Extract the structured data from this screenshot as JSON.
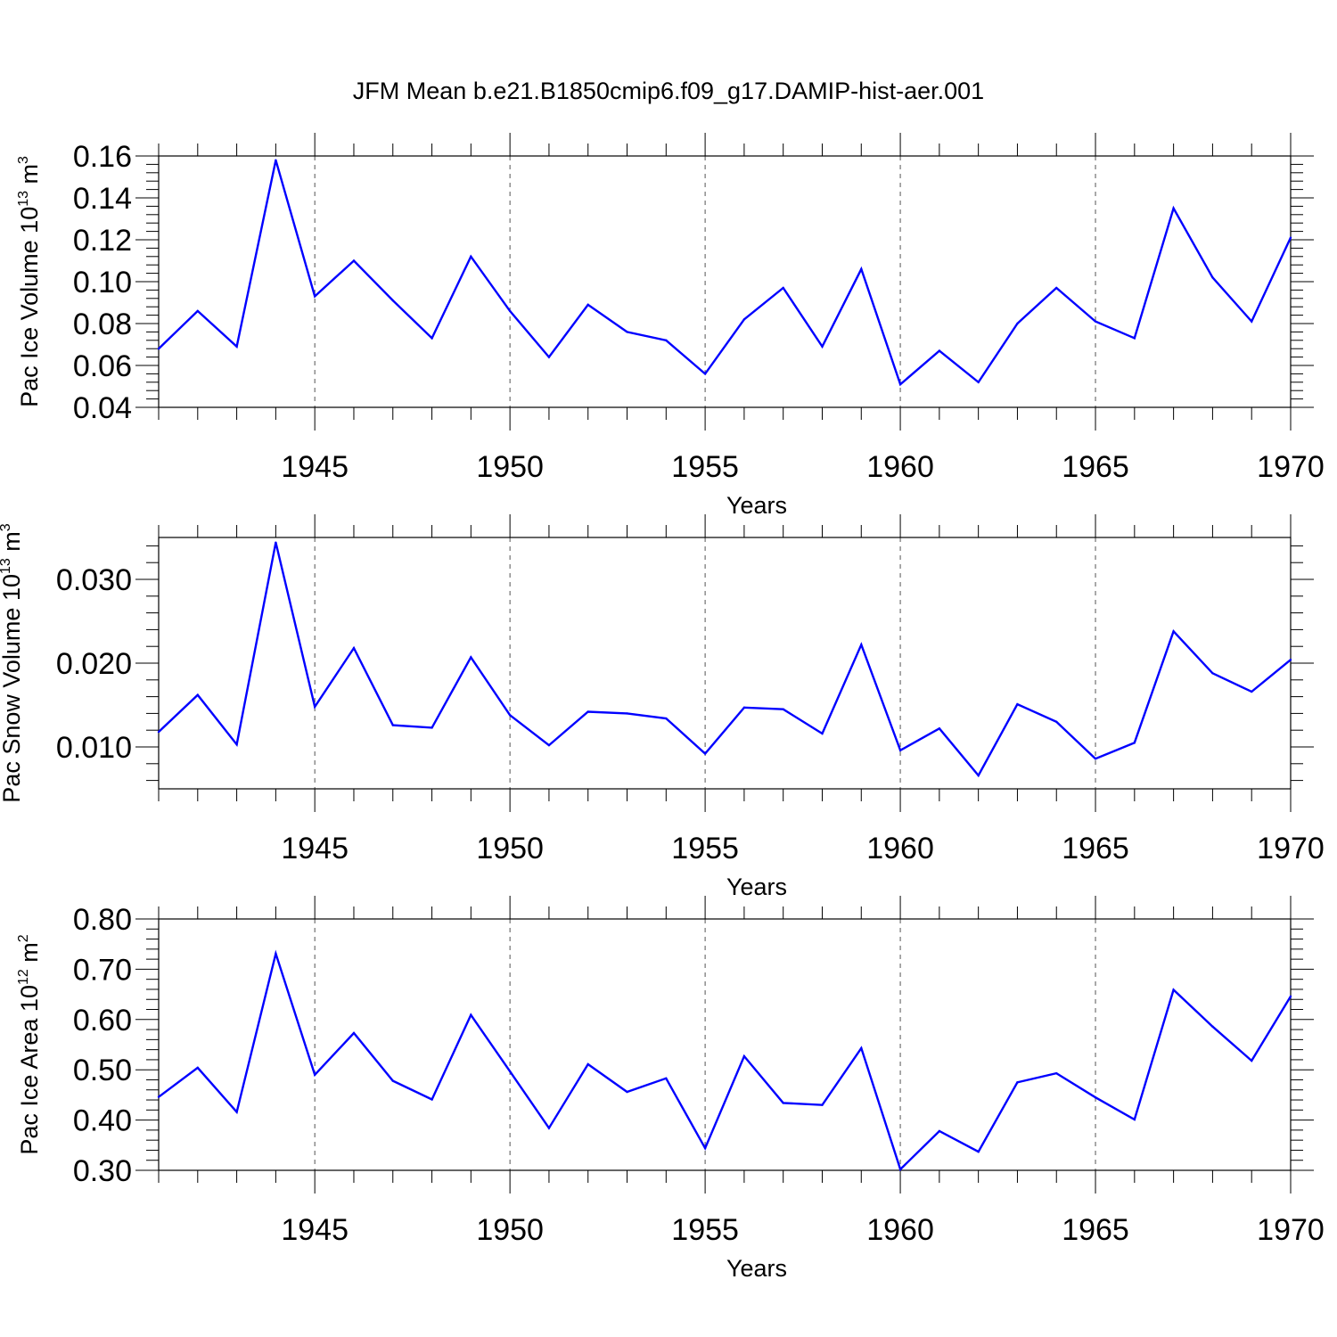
{
  "figure": {
    "title": "JFM Mean b.e21.B1850cmip6.f09_g17.DAMIP-hist-aer.001"
  },
  "chart_data": [
    {
      "type": "line",
      "ylabel": {
        "text": "Pac Ice Volume 10",
        "sup": "13",
        "unit": " m",
        "unit_sup": "3"
      },
      "xlabel": "Years",
      "x": [
        1941,
        1942,
        1943,
        1944,
        1945,
        1946,
        1947,
        1948,
        1949,
        1950,
        1951,
        1952,
        1953,
        1954,
        1955,
        1956,
        1957,
        1958,
        1959,
        1960,
        1961,
        1962,
        1963,
        1964,
        1965,
        1966,
        1967,
        1968,
        1969,
        1970
      ],
      "series": [
        {
          "color": "#0000ff",
          "values": [
            0.068,
            0.086,
            0.069,
            0.158,
            0.093,
            0.11,
            0.091,
            0.073,
            0.112,
            0.086,
            0.064,
            0.089,
            0.076,
            0.072,
            0.056,
            0.082,
            0.097,
            0.069,
            0.106,
            0.051,
            0.067,
            0.052,
            0.08,
            0.097,
            0.081,
            0.073,
            0.135,
            0.102,
            0.081,
            0.121
          ]
        }
      ],
      "xlim": [
        1941,
        1970
      ],
      "ylim": [
        0.04,
        0.16
      ],
      "yticks": [
        0.04,
        0.06,
        0.08,
        0.1,
        0.12,
        0.14,
        0.16
      ],
      "ytick_labels": [
        "0.04",
        "0.06",
        "0.08",
        "0.10",
        "0.12",
        "0.14",
        "0.16"
      ],
      "xticks": [
        1945,
        1950,
        1955,
        1960,
        1965,
        1970
      ],
      "xtick_labels": [
        "1945",
        "1950",
        "1955",
        "1960",
        "1965",
        "1970"
      ],
      "vertical_grid": "dashed at major x ticks"
    },
    {
      "type": "line",
      "ylabel": {
        "text": "Pac Snow Volume 10",
        "sup": "13",
        "unit": " m",
        "unit_sup": "3"
      },
      "xlabel": "Years",
      "x": [
        1941,
        1942,
        1943,
        1944,
        1945,
        1946,
        1947,
        1948,
        1949,
        1950,
        1951,
        1952,
        1953,
        1954,
        1955,
        1956,
        1957,
        1958,
        1959,
        1960,
        1961,
        1962,
        1963,
        1964,
        1965,
        1966,
        1967,
        1968,
        1969,
        1970
      ],
      "series": [
        {
          "color": "#0000ff",
          "values": [
            0.0118,
            0.0162,
            0.0103,
            0.0344,
            0.0148,
            0.0218,
            0.0126,
            0.0123,
            0.0207,
            0.0138,
            0.0102,
            0.0142,
            0.014,
            0.0134,
            0.0092,
            0.0147,
            0.0145,
            0.0116,
            0.0222,
            0.0096,
            0.0122,
            0.0066,
            0.0151,
            0.013,
            0.0086,
            0.0105,
            0.0238,
            0.0188,
            0.0166,
            0.0204
          ]
        }
      ],
      "xlim": [
        1941,
        1970
      ],
      "ylim": [
        0.005,
        0.035
      ],
      "yticks": [
        0.01,
        0.02,
        0.03
      ],
      "ytick_labels": [
        "0.010",
        "0.020",
        "0.030"
      ],
      "xticks": [
        1945,
        1950,
        1955,
        1960,
        1965,
        1970
      ],
      "xtick_labels": [
        "1945",
        "1950",
        "1955",
        "1960",
        "1965",
        "1970"
      ],
      "vertical_grid": "dashed at major x ticks"
    },
    {
      "type": "line",
      "ylabel": {
        "text": "Pac Ice Area 10",
        "sup": "12",
        "unit": " m",
        "unit_sup": "2"
      },
      "xlabel": "Years",
      "x": [
        1941,
        1942,
        1943,
        1944,
        1945,
        1946,
        1947,
        1948,
        1949,
        1950,
        1951,
        1952,
        1953,
        1954,
        1955,
        1956,
        1957,
        1958,
        1959,
        1960,
        1961,
        1962,
        1963,
        1964,
        1965,
        1966,
        1967,
        1968,
        1969,
        1970
      ],
      "series": [
        {
          "color": "#0000ff",
          "values": [
            0.446,
            0.504,
            0.416,
            0.731,
            0.49,
            0.573,
            0.478,
            0.441,
            0.609,
            0.497,
            0.384,
            0.511,
            0.456,
            0.483,
            0.344,
            0.527,
            0.434,
            0.43,
            0.543,
            0.302,
            0.378,
            0.337,
            0.475,
            0.493,
            0.445,
            0.401,
            0.659,
            0.586,
            0.518,
            0.646
          ]
        }
      ],
      "xlim": [
        1941,
        1970
      ],
      "ylim": [
        0.3,
        0.8
      ],
      "yticks": [
        0.3,
        0.4,
        0.5,
        0.6,
        0.7,
        0.8
      ],
      "ytick_labels": [
        "0.30",
        "0.40",
        "0.50",
        "0.60",
        "0.70",
        "0.80"
      ],
      "xticks": [
        1945,
        1950,
        1955,
        1960,
        1965,
        1970
      ],
      "xtick_labels": [
        "1945",
        "1950",
        "1955",
        "1960",
        "1965",
        "1970"
      ],
      "vertical_grid": "dashed at major x ticks"
    }
  ]
}
